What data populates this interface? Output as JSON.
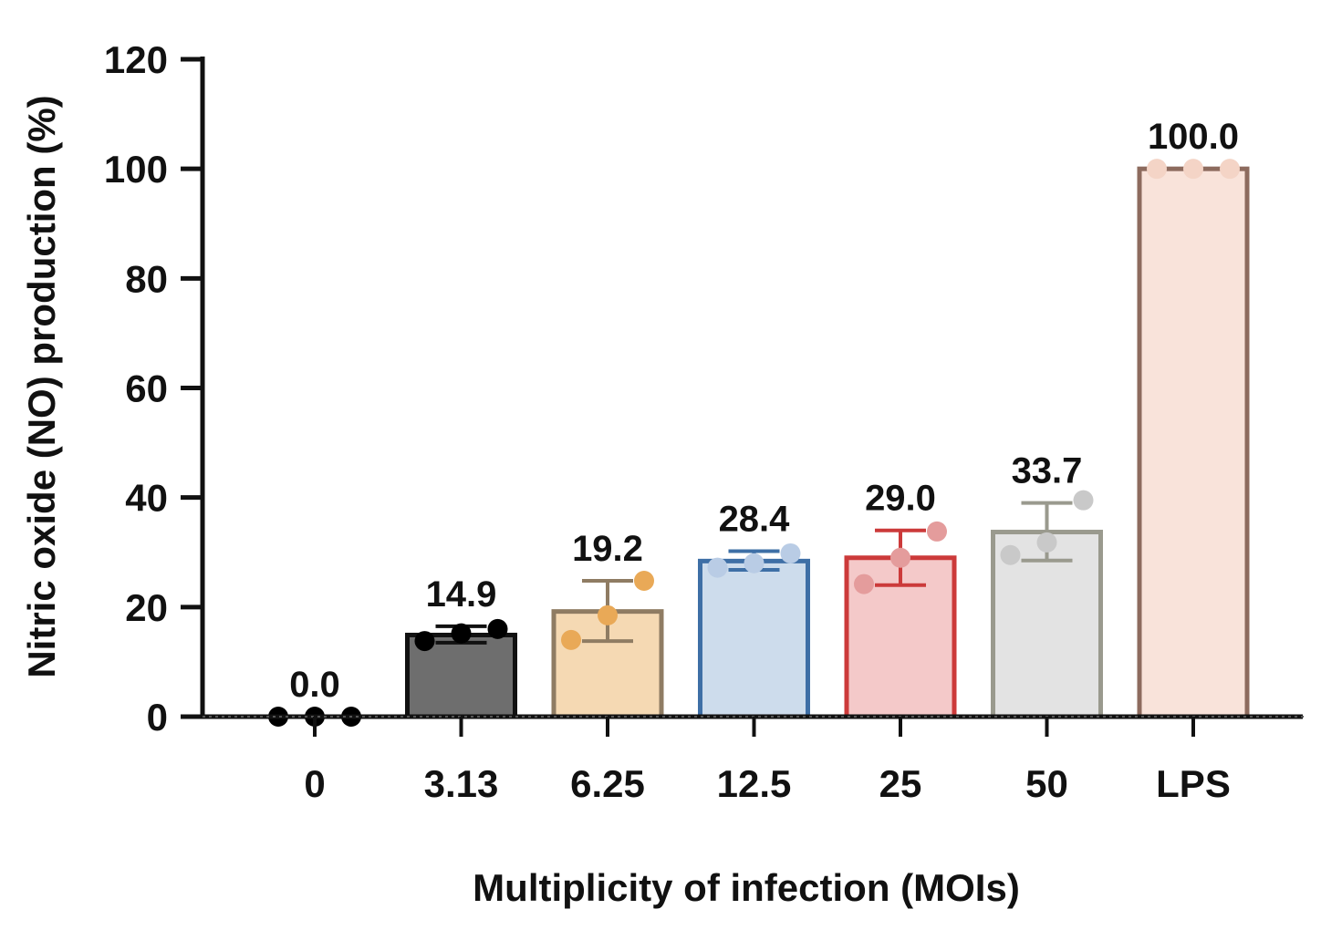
{
  "chart_data": {
    "type": "bar",
    "title": "",
    "xlabel": "Multiplicity of infection (MOIs)",
    "ylabel": "Nitric oxide (NO) production (%)",
    "ylim": [
      0,
      120
    ],
    "yticks": [
      0,
      20,
      40,
      60,
      80,
      100,
      120
    ],
    "ytick_labels": [
      "0",
      "20",
      "40",
      "60",
      "80",
      "100",
      "120"
    ],
    "categories": [
      "0",
      "3.13",
      "6.25",
      "12.5",
      "25",
      "50",
      "LPS"
    ],
    "values": [
      0.0,
      14.9,
      19.2,
      28.4,
      29.0,
      33.7,
      100.0
    ],
    "value_labels": [
      "0.0",
      "14.9",
      "19.2",
      "28.4",
      "29.0",
      "33.7",
      "100.0"
    ],
    "error_high": [
      0,
      16.5,
      24.8,
      30.2,
      34.0,
      39.0,
      100.0
    ],
    "error_low": [
      0,
      13.5,
      13.8,
      26.8,
      24.0,
      28.5,
      100.0
    ],
    "points": [
      [
        0,
        0,
        0
      ],
      [
        13.8,
        15.2,
        16.0
      ],
      [
        14.0,
        18.5,
        24.8
      ],
      [
        27.2,
        28.0,
        29.8
      ],
      [
        24.2,
        29.0,
        33.8
      ],
      [
        29.5,
        31.8,
        39.5
      ],
      [
        100,
        100,
        100
      ]
    ],
    "bar_fill_colors": [
      "#ffffff",
      "#6e6e6e",
      "#f5d9b3",
      "#cddcec",
      "#f4c9c9",
      "#e3e3e3",
      "#f9e3da"
    ],
    "bar_edge_colors": [
      "#111111",
      "#111111",
      "#8f7c63",
      "#3e6fa6",
      "#cc3a3a",
      "#9a9a8e",
      "#8d6b5e"
    ],
    "point_colors": [
      "#000000",
      "#000000",
      "#e9a957",
      "#b9cce5",
      "#e49c9c",
      "#c9c9c9",
      "#f4d4c6"
    ],
    "grid": false,
    "legend": "none"
  }
}
